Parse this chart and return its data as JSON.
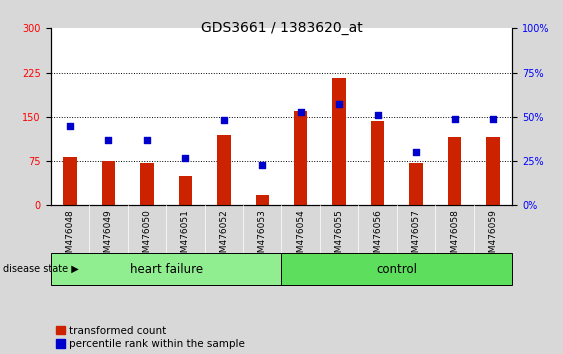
{
  "title": "GDS3661 / 1383620_at",
  "samples": [
    "GSM476048",
    "GSM476049",
    "GSM476050",
    "GSM476051",
    "GSM476052",
    "GSM476053",
    "GSM476054",
    "GSM476055",
    "GSM476056",
    "GSM476057",
    "GSM476058",
    "GSM476059"
  ],
  "transformed_count": [
    82,
    75,
    72,
    50,
    120,
    18,
    160,
    215,
    143,
    72,
    115,
    115
  ],
  "percentile_rank": [
    45,
    37,
    37,
    27,
    48,
    23,
    53,
    57,
    51,
    30,
    49,
    49
  ],
  "disease_groups": [
    {
      "label": "heart failure",
      "start": 0,
      "end": 6,
      "color": "#90ee90"
    },
    {
      "label": "control",
      "start": 6,
      "end": 12,
      "color": "#5ddf5d"
    }
  ],
  "left_ylim": [
    0,
    300
  ],
  "right_ylim": [
    0,
    100
  ],
  "left_yticks": [
    0,
    75,
    150,
    225,
    300
  ],
  "right_yticks": [
    0,
    25,
    50,
    75,
    100
  ],
  "right_yticklabels": [
    "0%",
    "25%",
    "50%",
    "75%",
    "100%"
  ],
  "bar_color": "#cc2200",
  "dot_color": "#0000cc",
  "bar_width": 0.35,
  "dot_size": 18,
  "grid_color": "black",
  "bg_color": "#d8d8d8",
  "plot_bg": "white",
  "ylabel_left_color": "red",
  "ylabel_right_color": "blue",
  "title_fontsize": 10,
  "tick_fontsize": 7,
  "xtick_fontsize": 6.5,
  "legend_fontsize": 7.5,
  "group_label_fontsize": 8.5
}
